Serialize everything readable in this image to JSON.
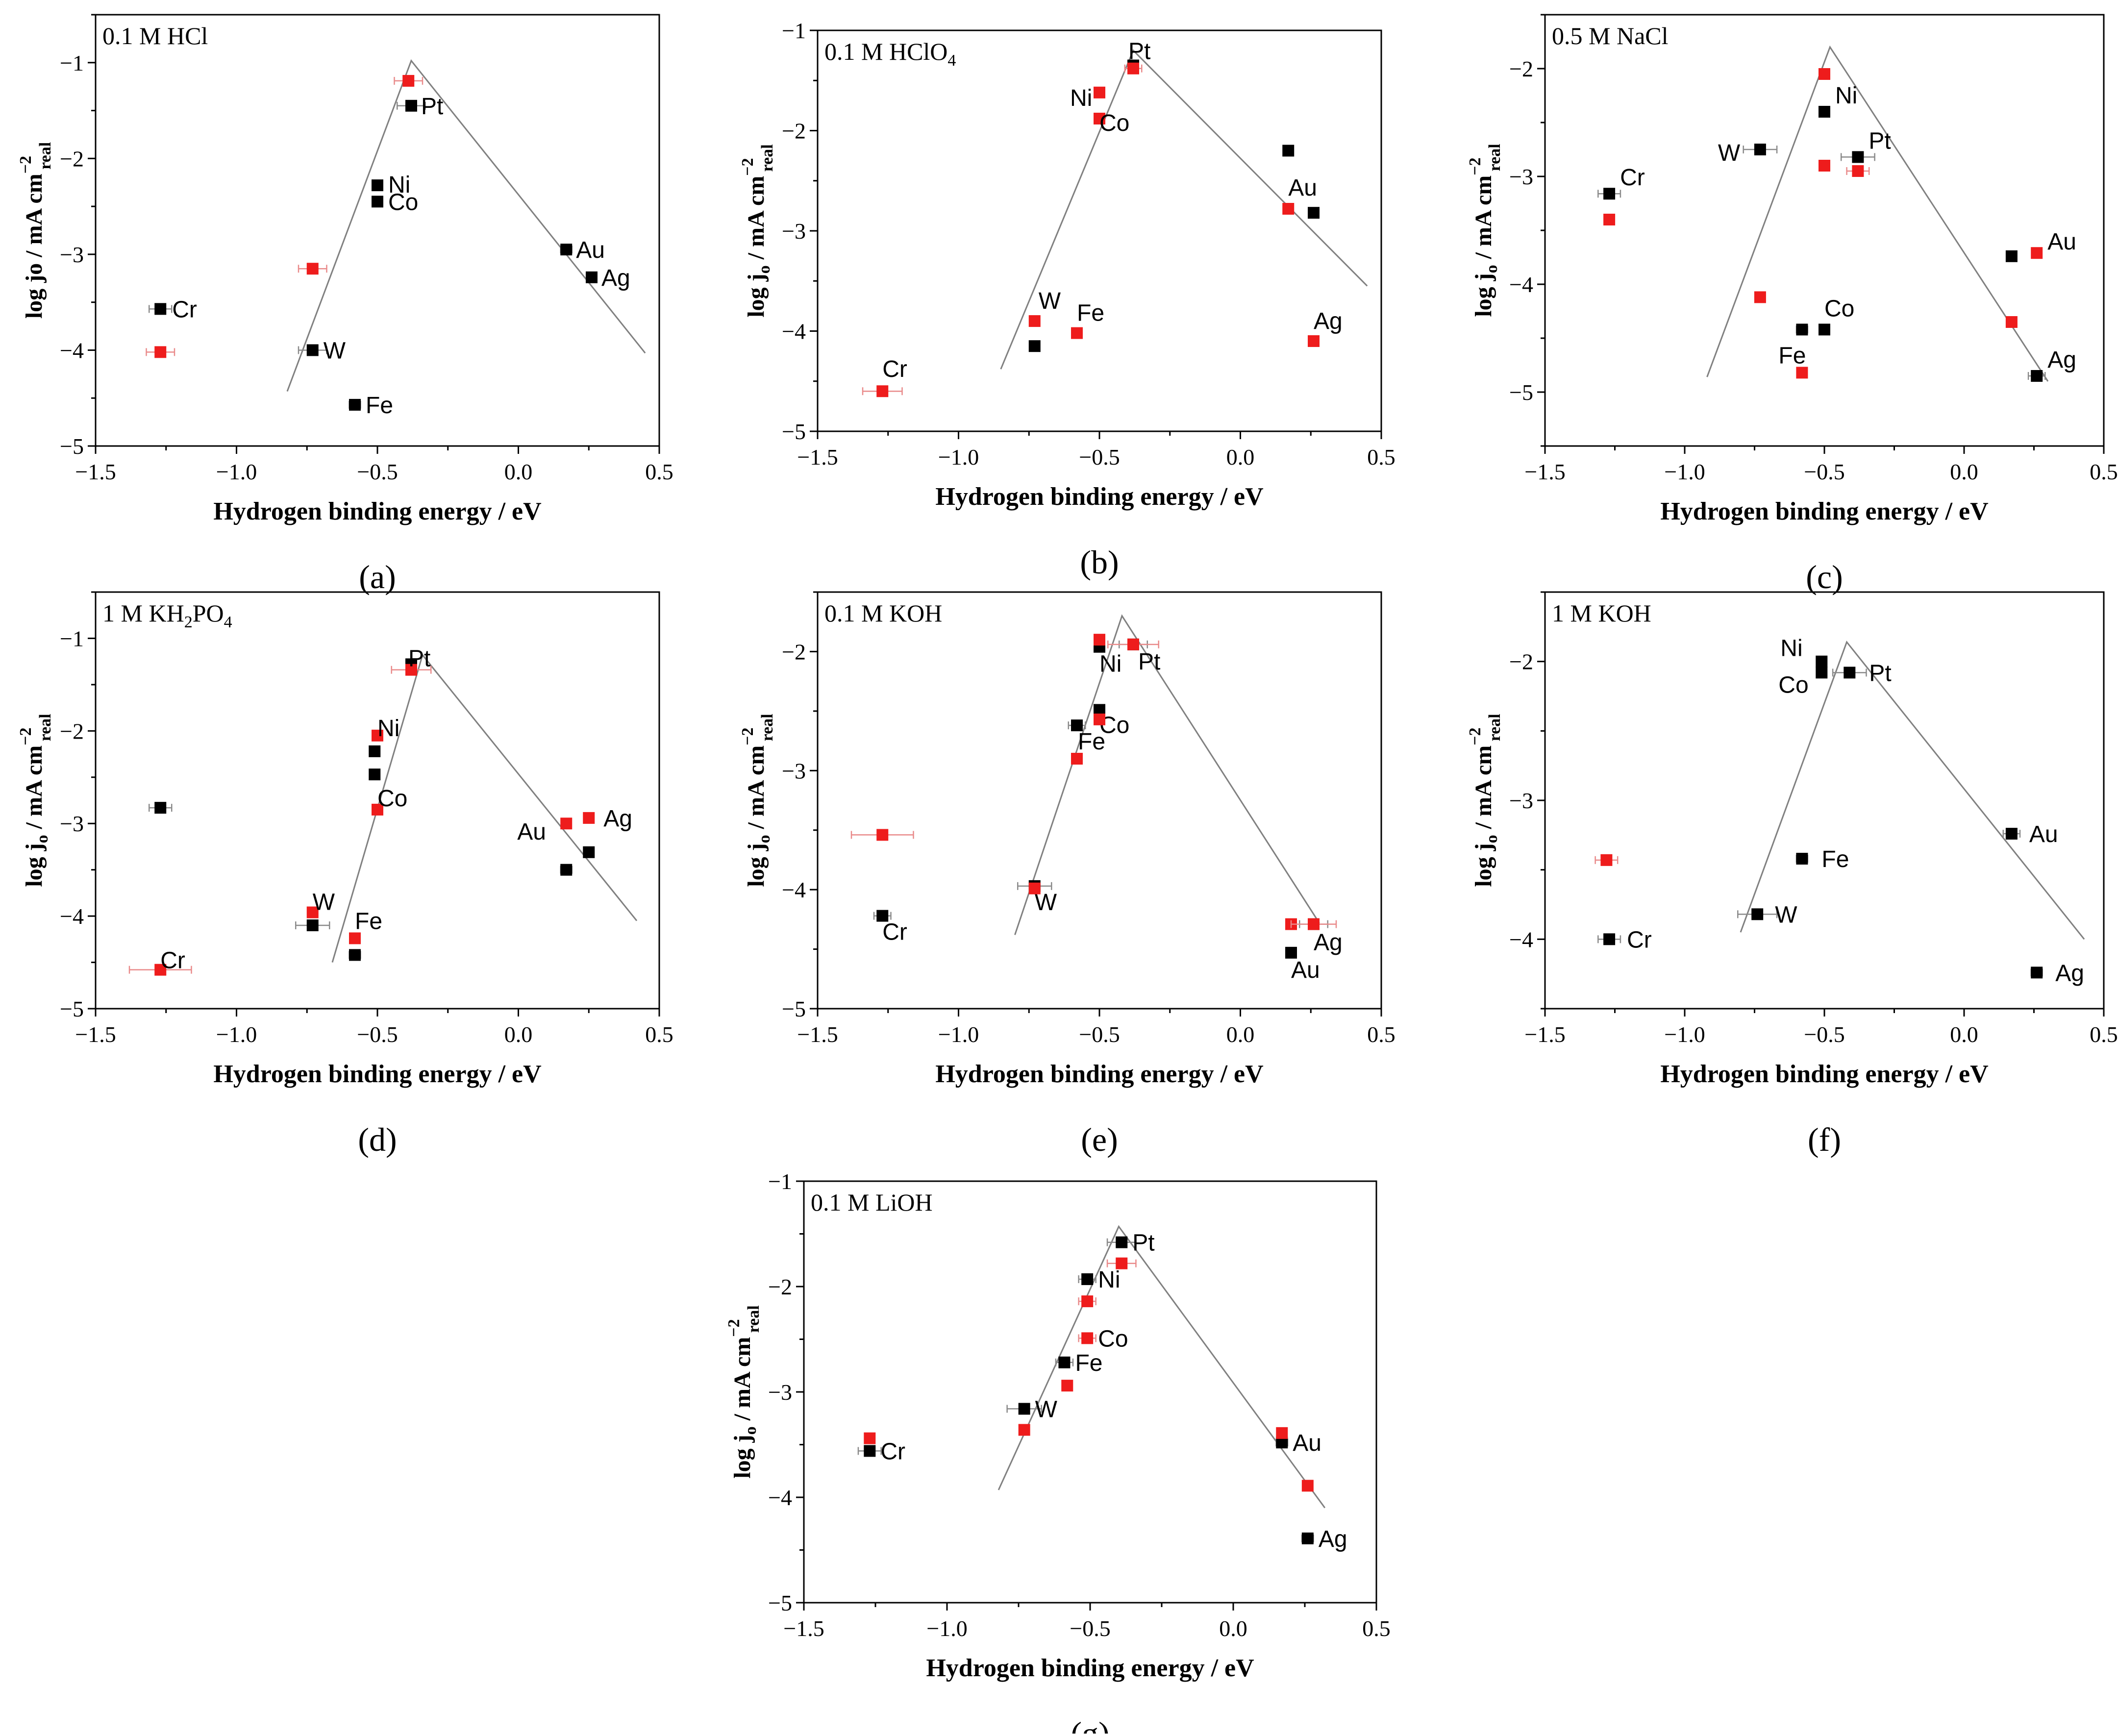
{
  "figure": {
    "colors": {
      "series_1": "#000000",
      "series_2": "#ee1c1c",
      "volcano": "#808080",
      "error_bar": "#8a8a8a"
    }
  },
  "chart_data": [
    {
      "panel": "(a)",
      "type": "scatter",
      "electrolyte": "0.1 M HCl",
      "xlabel": "Hydrogen binding energy / eV",
      "ylabel": "log jo / mA cm_real^-2",
      "xlim": [
        -1.5,
        0.5
      ],
      "ylim": [
        -5,
        -0.5
      ],
      "xticks": [
        -1.5,
        -1.0,
        -0.5,
        0.0,
        0.5
      ],
      "yticks": [
        -5,
        -4,
        -3,
        -2,
        -1
      ],
      "volcano": [
        [
          -0.82,
          -4.43
        ],
        [
          -0.38,
          -0.98
        ],
        [
          0.45,
          -4.03
        ]
      ],
      "series": [
        {
          "name": "black",
          "points": [
            {
              "x": -1.27,
              "y": -3.57,
              "label": "Cr",
              "xerr": 0.04
            },
            {
              "x": -0.73,
              "y": -4.0,
              "label": "W",
              "xerr": 0.05
            },
            {
              "x": -0.58,
              "y": -4.57,
              "label": "Fe",
              "xerr": 0.02
            },
            {
              "x": -0.5,
              "y": -2.28,
              "label": "Ni"
            },
            {
              "x": -0.5,
              "y": -2.45,
              "label": "Co"
            },
            {
              "x": -0.38,
              "y": -1.45,
              "label": "Pt",
              "xerr": 0.05
            },
            {
              "x": 0.17,
              "y": -2.95,
              "label": "Au",
              "xerr": 0.02
            },
            {
              "x": 0.26,
              "y": -3.24,
              "label": "Ag"
            }
          ]
        },
        {
          "name": "red",
          "points": [
            {
              "x": -1.27,
              "y": -4.02,
              "xerr": 0.05
            },
            {
              "x": -0.73,
              "y": -3.15,
              "xerr": 0.05
            },
            {
              "x": -0.39,
              "y": -1.19,
              "xerr": 0.05
            }
          ]
        }
      ]
    },
    {
      "panel": "(b)",
      "type": "scatter",
      "electrolyte": "0.1 M HClO4",
      "xlabel": "Hydrogen binding energy / eV",
      "ylabel": "log j_o / mA cm_real^-2",
      "xlim": [
        -1.5,
        0.5
      ],
      "ylim": [
        -5,
        -1
      ],
      "xticks": [
        -1.5,
        -1.0,
        -0.5,
        0.0,
        0.5
      ],
      "yticks": [
        -5,
        -4,
        -3,
        -2,
        -1
      ],
      "volcano": [
        [
          -0.85,
          -4.38
        ],
        [
          -0.38,
          -1.2
        ],
        [
          0.45,
          -3.55
        ]
      ],
      "series": [
        {
          "name": "black",
          "points": [
            {
              "x": -0.73,
              "y": -4.15
            },
            {
              "x": -0.38,
              "y": -1.35
            },
            {
              "x": 0.17,
              "y": -2.2
            },
            {
              "x": 0.26,
              "y": -2.82
            }
          ]
        },
        {
          "name": "red",
          "points": [
            {
              "x": -1.27,
              "y": -4.6,
              "label": "Cr",
              "xerr": 0.07
            },
            {
              "x": -0.73,
              "y": -3.9,
              "label": "W"
            },
            {
              "x": -0.58,
              "y": -4.02,
              "label": "Fe"
            },
            {
              "x": -0.5,
              "y": -1.62,
              "label": "Ni"
            },
            {
              "x": -0.5,
              "y": -1.88,
              "label": "Co"
            },
            {
              "x": -0.38,
              "y": -1.38,
              "label": "Pt",
              "xerr": 0.03
            },
            {
              "x": 0.17,
              "y": -2.78,
              "label": "Au"
            },
            {
              "x": 0.26,
              "y": -4.1,
              "label": "Ag"
            }
          ]
        }
      ]
    },
    {
      "panel": "(c)",
      "type": "scatter",
      "electrolyte": "0.5 M NaCl",
      "xlabel": "Hydrogen binding energy / eV",
      "ylabel": "log j_o / mA cm_real^-2",
      "xlim": [
        -1.5,
        0.5
      ],
      "ylim": [
        -5.5,
        -1.5
      ],
      "xticks": [
        -1.5,
        -1.0,
        -0.5,
        0.0,
        0.5
      ],
      "yticks": [
        -5,
        -4,
        -3,
        -2
      ],
      "volcano": [
        [
          -0.92,
          -4.86
        ],
        [
          -0.48,
          -1.8
        ],
        [
          0.3,
          -4.9
        ]
      ],
      "series": [
        {
          "name": "black",
          "points": [
            {
              "x": -1.27,
              "y": -3.16,
              "label": "Cr",
              "xerr": 0.04
            },
            {
              "x": -0.73,
              "y": -2.75,
              "label": "W",
              "xerr": 0.06
            },
            {
              "x": -0.58,
              "y": -4.42,
              "xerr": 0.02
            },
            {
              "x": -0.5,
              "y": -4.42,
              "label": "Co"
            },
            {
              "x": -0.5,
              "y": -2.4,
              "label": "Ni"
            },
            {
              "x": -0.38,
              "y": -2.82,
              "label": "Pt",
              "xerr": 0.06
            },
            {
              "x": 0.17,
              "y": -3.74
            },
            {
              "x": 0.26,
              "y": -4.85,
              "label": "Ag",
              "xerr": 0.03
            }
          ]
        },
        {
          "name": "red",
          "points": [
            {
              "x": -1.27,
              "y": -3.4
            },
            {
              "x": -0.73,
              "y": -4.12
            },
            {
              "x": -0.58,
              "y": -4.82,
              "label": "Fe"
            },
            {
              "x": -0.5,
              "y": -2.05
            },
            {
              "x": -0.5,
              "y": -2.9
            },
            {
              "x": -0.38,
              "y": -2.95,
              "xerr": 0.04
            },
            {
              "x": 0.17,
              "y": -4.35
            },
            {
              "x": 0.26,
              "y": -3.71,
              "label": "Au"
            }
          ]
        }
      ]
    },
    {
      "panel": "(d)",
      "type": "scatter",
      "electrolyte": "1 M KH2PO4",
      "xlabel": "Hydrogen binding energy / eV",
      "ylabel": "log j_o / mA cm_real^-2",
      "xlim": [
        -1.5,
        0.5
      ],
      "ylim": [
        -5,
        -0.5
      ],
      "xticks": [
        -1.5,
        -1.0,
        -0.5,
        0.0,
        0.5
      ],
      "yticks": [
        -5,
        -4,
        -3,
        -2,
        -1
      ],
      "volcano": [
        [
          -0.66,
          -4.5
        ],
        [
          -0.34,
          -1.18
        ],
        [
          0.42,
          -4.05
        ]
      ],
      "series": [
        {
          "name": "black",
          "points": [
            {
              "x": -1.27,
              "y": -2.83,
              "xerr": 0.04
            },
            {
              "x": -0.73,
              "y": -4.1,
              "xerr": 0.06
            },
            {
              "x": -0.58,
              "y": -4.42,
              "xerr": 0.02
            },
            {
              "x": -0.51,
              "y": -2.22
            },
            {
              "x": -0.51,
              "y": -2.47
            },
            {
              "x": -0.38,
              "y": -1.28
            },
            {
              "x": 0.17,
              "y": -3.5,
              "xerr": 0.02
            },
            {
              "x": 0.25,
              "y": -3.31
            }
          ]
        },
        {
          "name": "red",
          "points": [
            {
              "x": -1.27,
              "y": -4.58,
              "label": "Cr",
              "xerr": 0.11
            },
            {
              "x": -0.73,
              "y": -3.96,
              "label": "W"
            },
            {
              "x": -0.58,
              "y": -4.24,
              "label": "Fe"
            },
            {
              "x": -0.5,
              "y": -2.05,
              "label": "Ni"
            },
            {
              "x": -0.5,
              "y": -2.85,
              "label": "Co"
            },
            {
              "x": -0.38,
              "y": -1.34,
              "label": "Pt",
              "xerr": 0.07
            },
            {
              "x": 0.17,
              "y": -3.0,
              "label": "Au"
            },
            {
              "x": 0.25,
              "y": -2.94,
              "label": "Ag"
            }
          ]
        }
      ]
    },
    {
      "panel": "(e)",
      "type": "scatter",
      "electrolyte": "0.1 M KOH",
      "xlabel": "Hydrogen binding energy / eV",
      "ylabel": "log j_o / mA cm_real^-2",
      "xlim": [
        -1.5,
        0.5
      ],
      "ylim": [
        -5,
        -1.5
      ],
      "xticks": [
        -1.5,
        -1.0,
        -0.5,
        0.0,
        0.5
      ],
      "yticks": [
        -5,
        -4,
        -3,
        -2
      ],
      "volcano": [
        [
          -0.8,
          -4.38
        ],
        [
          -0.42,
          -1.7
        ],
        [
          0.28,
          -4.28
        ]
      ],
      "series": [
        {
          "name": "black",
          "points": [
            {
              "x": -1.27,
              "y": -4.22,
              "label": "Cr",
              "xerr": 0.03
            },
            {
              "x": -0.73,
              "y": -3.97,
              "label": "W",
              "xerr": 0.06
            },
            {
              "x": -0.58,
              "y": -2.62,
              "label": "Fe",
              "xerr": 0.03
            },
            {
              "x": -0.5,
              "y": -1.96,
              "label": "Ni"
            },
            {
              "x": -0.5,
              "y": -2.49,
              "label": "Co"
            },
            {
              "x": -0.38,
              "y": -1.94,
              "label": "Pt",
              "xerr": 0.05
            },
            {
              "x": 0.18,
              "y": -4.53,
              "label": "Au"
            },
            {
              "x": 0.26,
              "y": -4.29,
              "label": "Ag",
              "xerr": 0.05
            }
          ]
        },
        {
          "name": "red",
          "points": [
            {
              "x": -1.27,
              "y": -3.54,
              "xerr": 0.11
            },
            {
              "x": -0.73,
              "y": -3.99
            },
            {
              "x": -0.58,
              "y": -2.9
            },
            {
              "x": -0.5,
              "y": -1.9
            },
            {
              "x": -0.5,
              "y": -2.57
            },
            {
              "x": -0.38,
              "y": -1.94,
              "xerr": 0.09
            },
            {
              "x": 0.18,
              "y": -4.29
            },
            {
              "x": 0.26,
              "y": -4.29,
              "xerr": 0.08
            }
          ]
        }
      ]
    },
    {
      "panel": "(f)",
      "type": "scatter",
      "electrolyte": "1 M KOH",
      "xlabel": "Hydrogen binding energy / eV",
      "ylabel": "log j_o / mA cm_real^-2",
      "xlim": [
        -1.5,
        0.5
      ],
      "ylim": [
        -4.5,
        -1.5
      ],
      "xticks": [
        -1.5,
        -1.0,
        -0.5,
        0.0,
        0.5
      ],
      "yticks": [
        -4,
        -3,
        -2
      ],
      "volcano": [
        [
          -0.8,
          -3.95
        ],
        [
          -0.42,
          -1.86
        ],
        [
          0.43,
          -4.0
        ]
      ],
      "series": [
        {
          "name": "black",
          "points": [
            {
              "x": -1.27,
              "y": -4.0,
              "label": "Cr",
              "xerr": 0.04
            },
            {
              "x": -0.74,
              "y": -3.82,
              "label": "W",
              "xerr": 0.07
            },
            {
              "x": -0.58,
              "y": -3.42,
              "label": "Fe",
              "xerr": 0.02
            },
            {
              "x": -0.51,
              "y": -2.0,
              "label": "Ni"
            },
            {
              "x": -0.51,
              "y": -2.08,
              "label": "Co"
            },
            {
              "x": -0.41,
              "y": -2.08,
              "label": "Pt",
              "xerr": 0.06
            },
            {
              "x": 0.17,
              "y": -3.24,
              "label": "Au",
              "xerr": 0.03
            },
            {
              "x": 0.26,
              "y": -4.24,
              "label": "Ag",
              "xerr": 0.02
            }
          ]
        },
        {
          "name": "red",
          "points": [
            {
              "x": -1.28,
              "y": -3.43,
              "xerr": 0.04
            }
          ]
        }
      ]
    },
    {
      "panel": "(g)",
      "type": "scatter",
      "electrolyte": "0.1 M LiOH",
      "xlabel": "Hydrogen binding energy / eV",
      "ylabel": "log j_o / mA cm_real^-2",
      "xlim": [
        -1.5,
        0.5
      ],
      "ylim": [
        -5,
        -1
      ],
      "xticks": [
        -1.5,
        -1.0,
        -0.5,
        0.0,
        0.5
      ],
      "yticks": [
        -5,
        -4,
        -3,
        -2,
        -1
      ],
      "volcano": [
        [
          -0.82,
          -3.93
        ],
        [
          -0.4,
          -1.43
        ],
        [
          0.32,
          -4.1
        ]
      ],
      "series": [
        {
          "name": "black",
          "points": [
            {
              "x": -1.27,
              "y": -3.56,
              "label": "Cr",
              "xerr": 0.04
            },
            {
              "x": -0.73,
              "y": -3.16,
              "label": "W",
              "xerr": 0.06
            },
            {
              "x": -0.59,
              "y": -2.72,
              "label": "Fe",
              "xerr": 0.03
            },
            {
              "x": -0.51,
              "y": -1.93,
              "label": "Ni",
              "xerr": 0.03
            },
            {
              "x": -0.39,
              "y": -1.58,
              "label": "Pt",
              "xerr": 0.05
            },
            {
              "x": 0.17,
              "y": -3.48,
              "label": "Au",
              "xerr": 0.02
            },
            {
              "x": 0.26,
              "y": -4.39,
              "label": "Ag",
              "xerr": 0.02
            }
          ]
        },
        {
          "name": "red",
          "points": [
            {
              "x": -1.27,
              "y": -3.44
            },
            {
              "x": -0.73,
              "y": -3.36
            },
            {
              "x": -0.58,
              "y": -2.94
            },
            {
              "x": -0.51,
              "y": -2.14,
              "xerr": 0.03
            },
            {
              "x": -0.51,
              "y": -2.49,
              "label": "Co",
              "xerr": 0.03
            },
            {
              "x": -0.39,
              "y": -1.78,
              "xerr": 0.05
            },
            {
              "x": 0.17,
              "y": -3.39
            },
            {
              "x": 0.26,
              "y": -3.89
            }
          ]
        }
      ]
    }
  ]
}
